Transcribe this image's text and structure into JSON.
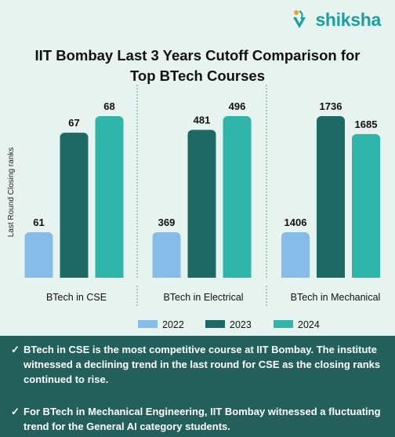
{
  "brand": {
    "name": "shiksha"
  },
  "title": {
    "line1": "IIT Bombay Last 3 Years Cutoff Comparison  for",
    "line2": "Top BTech Courses"
  },
  "chart_data": {
    "type": "bar",
    "ylabel": "Last Round Closing ranks",
    "categories": [
      "BTech in CSE",
      "BTech in Electrical",
      "BTech in Mechanical"
    ],
    "series": [
      {
        "name": "2022",
        "color": "#85bde8",
        "values": [
          61,
          369,
          1406
        ]
      },
      {
        "name": "2023",
        "color": "#1c6a63",
        "values": [
          67,
          481,
          1736
        ]
      },
      {
        "name": "2024",
        "color": "#30b5ab",
        "values": [
          68,
          496,
          1685
        ]
      }
    ],
    "legend_position": "bottom",
    "panels_with_independent_scale": true
  },
  "notes": [
    {
      "check": "✓",
      "text": "BTech in CSE is the most competitive course at IIT Bombay. The institute witnessed a declining trend in the last round for CSE as the closing ranks continued to rise."
    },
    {
      "check": "✓",
      "text": "For BTech in Mechanical Engineering, IIT Bombay witnessed a fluctuating trend for the General AI category students."
    }
  ],
  "colors": {
    "background": "#e7f3ef",
    "footer": "#23605b",
    "brand": "#1b9fa3"
  }
}
